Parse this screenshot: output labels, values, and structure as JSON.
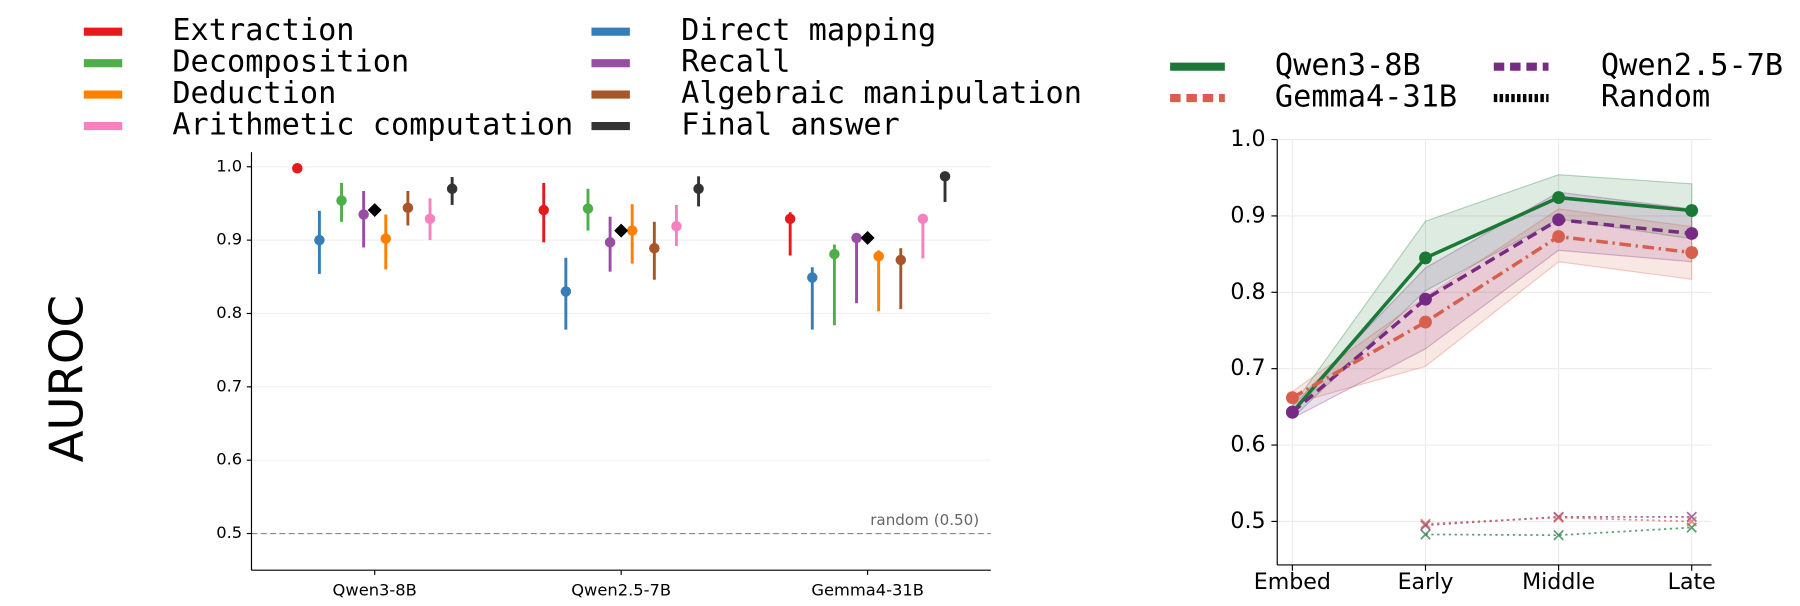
{
  "chart_data": [
    {
      "type": "pointrange",
      "ylabel": "AUROC",
      "categories": [
        "Qwen3-8B",
        "Qwen2.5-7B",
        "Gemma4-31B"
      ],
      "series": [
        {
          "name": "Extraction",
          "color": "#e41a1c",
          "values": [
            0.998,
            0.941,
            0.929
          ],
          "lower": [
            0.998,
            0.897,
            0.879
          ],
          "upper": [
            0.998,
            0.978,
            0.938
          ]
        },
        {
          "name": "Direct mapping",
          "color": "#377eb8",
          "values": [
            0.9,
            0.83,
            0.849
          ],
          "lower": [
            0.854,
            0.778,
            0.778
          ],
          "upper": [
            0.94,
            0.876,
            0.863
          ]
        },
        {
          "name": "Decomposition",
          "color": "#4daf4a",
          "values": [
            0.954,
            0.943,
            0.881
          ],
          "lower": [
            0.925,
            0.913,
            0.784
          ],
          "upper": [
            0.978,
            0.97,
            0.894
          ]
        },
        {
          "name": "Recall",
          "color": "#984ea3",
          "values": [
            0.935,
            0.897,
            0.903
          ],
          "lower": [
            0.89,
            0.857,
            0.814
          ],
          "upper": [
            0.967,
            0.932,
            0.908
          ]
        },
        {
          "name": "Deduction",
          "color": "#ff7f00",
          "values": [
            0.902,
            0.913,
            0.878
          ],
          "lower": [
            0.86,
            0.868,
            0.803
          ],
          "upper": [
            0.935,
            0.949,
            0.886
          ]
        },
        {
          "name": "Algebraic manipulation",
          "color": "#a65628",
          "values": [
            0.944,
            0.889,
            0.873
          ],
          "lower": [
            0.92,
            0.846,
            0.806
          ],
          "upper": [
            0.967,
            0.925,
            0.889
          ]
        },
        {
          "name": "Arithmetic computation",
          "color": "#f781bf",
          "values": [
            0.929,
            0.919,
            0.929
          ],
          "lower": [
            0.9,
            0.892,
            0.875
          ],
          "upper": [
            0.957,
            0.948,
            0.933
          ]
        },
        {
          "name": "Final answer",
          "color": "#333333",
          "values": [
            0.97,
            0.97,
            0.987
          ],
          "lower": [
            0.948,
            0.946,
            0.952
          ],
          "upper": [
            0.986,
            0.987,
            0.992
          ]
        }
      ],
      "mean_values": [
        0.941,
        0.913,
        0.903
      ],
      "mean_color": "#000000",
      "random_value": 0.5,
      "random_label": "random (0.50)",
      "ylim": [
        0.45,
        1.02
      ],
      "yticks": [
        0.5,
        0.6,
        0.7,
        0.8,
        0.9,
        {
          "value": 1,
          "label": "1.0"
        }
      ],
      "grid": true
    },
    {
      "type": "line",
      "categories": [
        "Embed",
        "Early",
        "Middle",
        "Late"
      ],
      "series": [
        {
          "name": "Qwen3-8B",
          "color": "#1b7837",
          "linestyle": "solid",
          "values": [
            0.643,
            0.845,
            0.924,
            0.907
          ],
          "lower": [
            0.635,
            0.802,
            0.896,
            0.87
          ],
          "upper": [
            0.651,
            0.893,
            0.954,
            0.942
          ]
        },
        {
          "name": "Qwen2.5-7B",
          "color": "#762a83",
          "linestyle": "dashed",
          "values": [
            0.643,
            0.791,
            0.895,
            0.877
          ],
          "lower": [
            0.635,
            0.726,
            0.855,
            0.84
          ],
          "upper": [
            0.651,
            0.832,
            0.931,
            0.909
          ]
        },
        {
          "name": "Gemma4-31B",
          "color": "#d6604d",
          "linestyle": "dashdot",
          "values": [
            0.662,
            0.761,
            0.873,
            0.852
          ],
          "lower": [
            0.654,
            0.703,
            0.84,
            0.817
          ],
          "upper": [
            0.67,
            0.794,
            0.909,
            0.886
          ]
        }
      ],
      "random_series": [
        {
          "color": "#1b7837",
          "values": [
            null,
            0.483,
            0.482,
            0.492
          ]
        },
        {
          "color": "#762a83",
          "values": [
            null,
            0.495,
            0.506,
            0.506
          ]
        },
        {
          "color": "#d6604d",
          "values": [
            null,
            0.497,
            0.505,
            0.5
          ]
        }
      ],
      "random_name": "Random",
      "random_color": "#000000",
      "ylim": [
        0.443,
        1.0
      ],
      "yticks": [
        0.5,
        0.6,
        0.7,
        0.8,
        0.9,
        {
          "value": 1,
          "label": "1.0"
        }
      ],
      "grid": true
    }
  ]
}
